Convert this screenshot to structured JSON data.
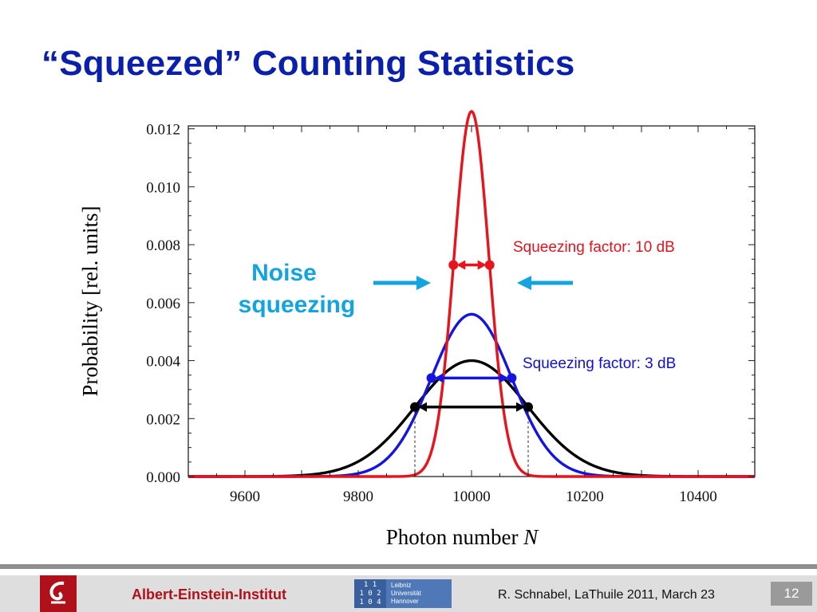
{
  "slide": {
    "title": "“Squeezed” Counting Statistics",
    "accent_title_color": "#0a1faa"
  },
  "chart_data": {
    "type": "line",
    "xlabel_text": "Photon number ",
    "xlabel_var": "N",
    "ylabel": "Probability [rel. units]",
    "xlim": [
      9500,
      10500
    ],
    "ylim": [
      0,
      0.0121
    ],
    "x_ticks": [
      9600,
      9800,
      10000,
      10200,
      10400
    ],
    "y_ticks": [
      "0.000",
      "0.002",
      "0.004",
      "0.006",
      "0.008",
      "0.010",
      "0.012"
    ],
    "grid": false,
    "series": [
      {
        "name": "Squeezing factor: 10 dB",
        "color": "#e8141c",
        "peak": 0.0126,
        "center": 10000,
        "width_at": 0.0073,
        "x_low": 9968,
        "x_high": 10032
      },
      {
        "name": "Squeezing factor: 3 dB",
        "color": "#1414e0",
        "peak": 0.0056,
        "center": 10000,
        "width_at": 0.0034,
        "x_low": 9929,
        "x_high": 10071
      },
      {
        "name": "",
        "color": "#000000",
        "peak": 0.004,
        "center": 10000,
        "width_at": 0.0024,
        "x_low": 9900,
        "x_high": 10100
      }
    ],
    "annotations": {
      "noise_line1": "Noise",
      "noise_line2": "squeezing",
      "noise_color": "#13a4e0",
      "label_10db": "Squeezing factor: 10 dB",
      "label_3db": "Squeezing factor: 3 dB"
    }
  },
  "footer": {
    "institute": "Albert-Einstein-Institut",
    "luh_mark": "1 1\n1 0 2\n1 0 4",
    "luh_name_1": "Leibniz",
    "luh_name_2": "Universität",
    "luh_name_3": "Hannover",
    "citation": "R. Schnabel, LaThuile 2011, March 23",
    "page": "12"
  }
}
